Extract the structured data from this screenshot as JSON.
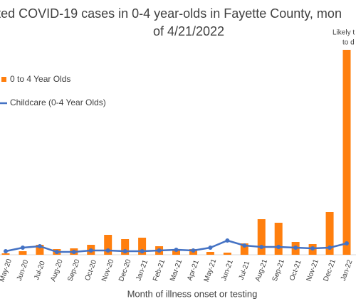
{
  "chart_data": {
    "type": "bar",
    "title_lines": [
      "orted COVID-19 cases in 0-4 year-olds in Fayette County, mon",
      "of 4/21/2022"
    ],
    "annotation_lines": [
      "Likely t",
      "to d"
    ],
    "x_label": "Month of illness onset or testing",
    "categories": [
      "May-20",
      "Jun-20",
      "Jul-20",
      "Aug-20",
      "Sep-20",
      "Oct-20",
      "Nov-20",
      "Dec-20",
      "Jan-21",
      "Feb-21",
      "Mar-21",
      "Apr-21",
      "May-21",
      "Jun-21",
      "Jul-21",
      "Aug-21",
      "Sep-21",
      "Oct-21",
      "Nov-21",
      "Dec-21",
      "Jan-22"
    ],
    "series": [
      {
        "name": "0 to 4 Year Olds",
        "type": "bar",
        "color": "#ff7f0e",
        "values": [
          2,
          5,
          14,
          8,
          9,
          14,
          28,
          22,
          24,
          12,
          8,
          8,
          4,
          3,
          16,
          50,
          45,
          18,
          15,
          60,
          288
        ]
      },
      {
        "name": "Childcare (0-4 Year Olds)",
        "type": "line",
        "color": "#4472c4",
        "values": [
          5,
          10,
          12,
          4,
          4,
          6,
          6,
          5,
          5,
          6,
          7,
          6,
          10,
          20,
          13,
          11,
          11,
          10,
          9,
          10,
          16
        ]
      }
    ],
    "ylim": [
      0,
      300
    ]
  }
}
